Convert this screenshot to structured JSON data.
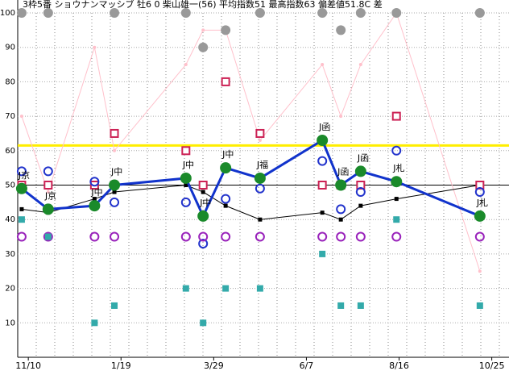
{
  "chart_data": {
    "type": "line",
    "title": "3枠5番 ショウナンマッシブ 牡6 0 柴山雄一(56) 平均指数51 最高指数63 偏差値51.8C 差",
    "x": [
      -5,
      15,
      50,
      65,
      119,
      132,
      149,
      175,
      222,
      236,
      251,
      278,
      341
    ],
    "race_labels": [
      "J京",
      "J京",
      "J中",
      "J中",
      "J中",
      "J中",
      "J中",
      "J福",
      "J函",
      "J函",
      "J函",
      "J札",
      "J札"
    ],
    "xlim": [
      -8,
      363
    ],
    "xticks": [
      {
        "value": 0,
        "label": "11/10"
      },
      {
        "value": 70,
        "label": "1/19"
      },
      {
        "value": 140,
        "label": "3/29"
      },
      {
        "value": 210,
        "label": "6/7"
      },
      {
        "value": 280,
        "label": "8/16"
      },
      {
        "value": 350,
        "label": "10/25"
      }
    ],
    "ylim": [
      0,
      100
    ],
    "yticks": [
      10,
      20,
      30,
      40,
      50,
      60,
      70,
      80,
      90,
      100
    ],
    "reference_lines": [
      {
        "value": 50,
        "color": "#000000"
      },
      {
        "value": 61.5,
        "color": "#ffee00"
      }
    ],
    "series": [
      {
        "color": "#ffc0cb",
        "style": "line",
        "values": [
          70,
          48,
          90,
          60,
          85,
          95,
          95,
          63,
          85,
          70,
          85,
          100,
          25
        ]
      },
      {
        "color": "#000000",
        "style": "thin",
        "values": [
          43,
          42,
          46,
          48,
          50,
          48,
          44,
          40,
          42,
          40,
          44,
          46,
          50
        ]
      },
      {
        "color": "#999999",
        "style": "dot",
        "values": [
          100,
          100,
          null,
          100,
          100,
          90,
          95,
          100,
          100,
          95,
          100,
          100,
          100
        ]
      },
      {
        "color": "#cc2255",
        "style": "square",
        "values": [
          50,
          50,
          50,
          65,
          60,
          50,
          80,
          65,
          50,
          50,
          50,
          70,
          50
        ]
      },
      {
        "color": "#2233cc",
        "style": "ring",
        "values": [
          54,
          54,
          51,
          45,
          45,
          33,
          46,
          49,
          57,
          43,
          48,
          60,
          48
        ]
      },
      {
        "color": "#9922bb",
        "style": "ring",
        "values": [
          35,
          35,
          35,
          35,
          35,
          35,
          35,
          35,
          35,
          35,
          35,
          35,
          35
        ]
      },
      {
        "color": "#33aaaa",
        "style": "block",
        "values": [
          40,
          35,
          10,
          15,
          20,
          10,
          20,
          20,
          30,
          15,
          15,
          40,
          15
        ]
      },
      {
        "color": "#1133cc",
        "style": "main",
        "values": [
          49,
          43,
          44,
          50,
          52,
          41,
          55,
          52,
          63,
          50,
          54,
          51,
          41
        ]
      }
    ]
  }
}
